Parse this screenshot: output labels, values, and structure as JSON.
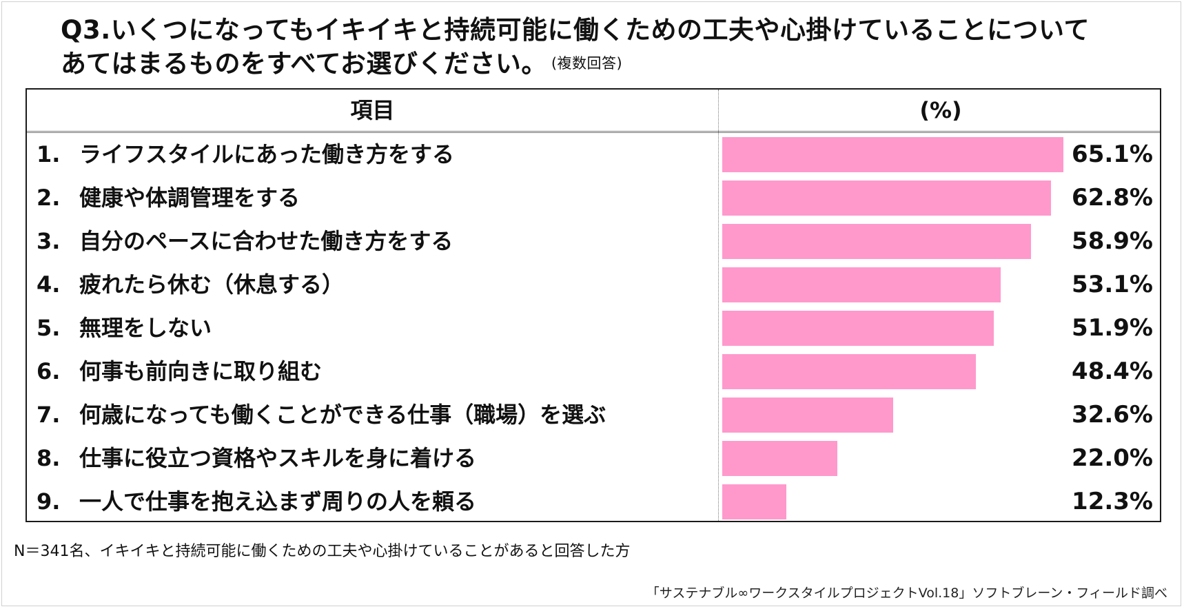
{
  "title": {
    "line1": "Q3.いくつになってもイキイキと持続可能に働くための工夫や心掛けていることについて",
    "line2": "あてはまるものをすべてお選びください。",
    "note": "(複数回答)"
  },
  "chart_data": {
    "type": "bar",
    "orientation": "horizontal",
    "column_headers": {
      "item": "項目",
      "value": "(%)"
    },
    "bar_color": "#ff99cc",
    "xlim": [
      0,
      70
    ],
    "rows": [
      {
        "num": "1.",
        "label": "ライフスタイルにあった働き方をする",
        "value": 65.1,
        "display": "65.1%"
      },
      {
        "num": "2.",
        "label": "健康や体調管理をする",
        "value": 62.8,
        "display": "62.8%"
      },
      {
        "num": "3.",
        "label": "自分のペースに合わせた働き方をする",
        "value": 58.9,
        "display": "58.9%"
      },
      {
        "num": "4.",
        "label": "疲れたら休む（休息する）",
        "value": 53.1,
        "display": "53.1%"
      },
      {
        "num": "5.",
        "label": "無理をしない",
        "value": 51.9,
        "display": "51.9%"
      },
      {
        "num": "6.",
        "label": "何事も前向きに取り組む",
        "value": 48.4,
        "display": "48.4%"
      },
      {
        "num": "7.",
        "label": "何歳になっても働くことができる仕事（職場）を選ぶ",
        "value": 32.6,
        "display": "32.6%"
      },
      {
        "num": "8.",
        "label": "仕事に役立つ資格やスキルを身に着ける",
        "value": 22.0,
        "display": "22.0%"
      },
      {
        "num": "9.",
        "label": "一人で仕事を抱え込まず周りの人を頼る",
        "value": 12.3,
        "display": "12.3%"
      }
    ]
  },
  "footnote": "N＝341名、イキイキと持続可能に働くための工夫や心掛けていることがあると回答した方",
  "source": "「サステナブル∞ワークスタイルプロジェクトVol.18」ソフトブレーン・フィールド調べ"
}
